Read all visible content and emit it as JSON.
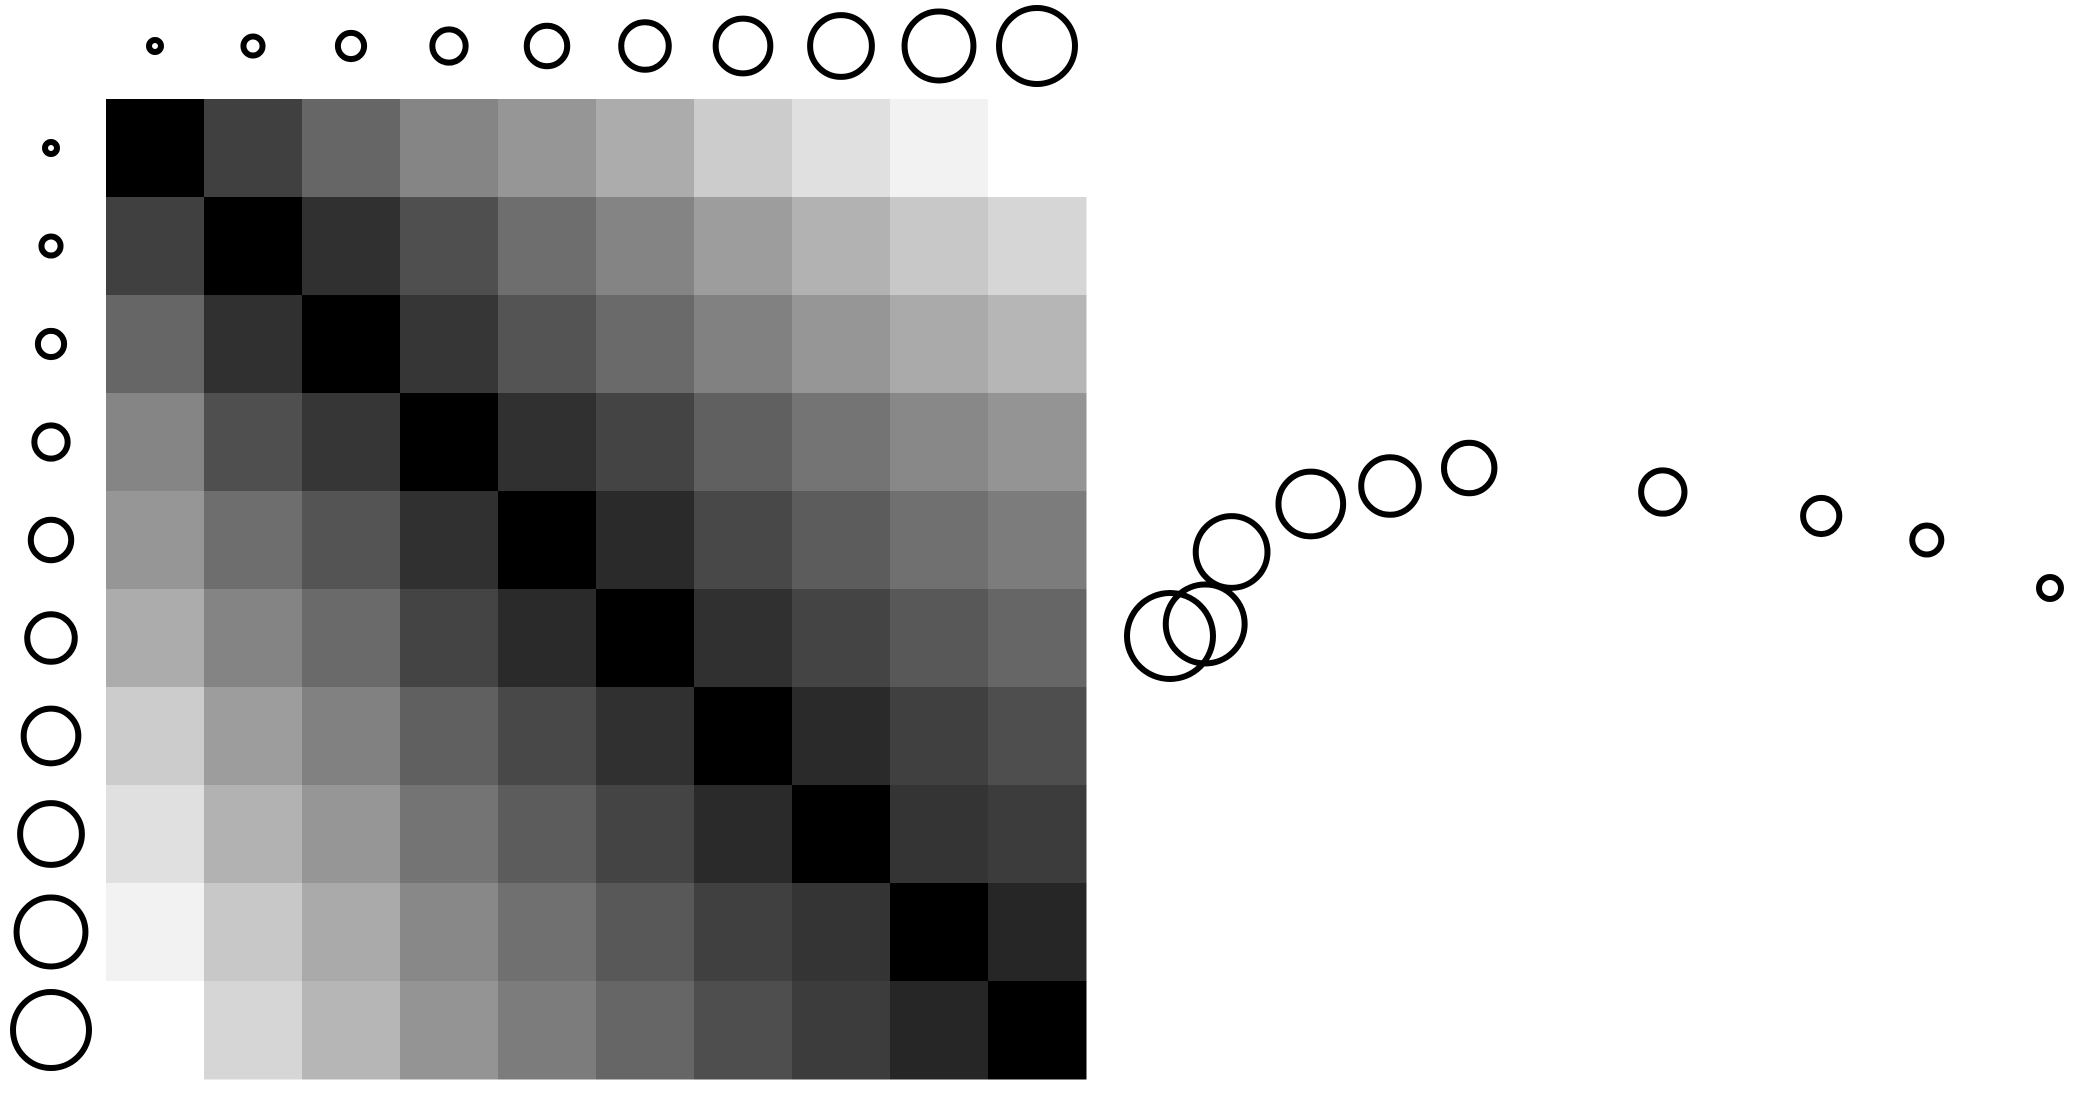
{
  "chart_data": {
    "type": "heatmap",
    "title": "",
    "description_note": "",
    "matrix": [
      [
        0,
        64,
        102,
        133,
        150,
        172,
        204,
        224,
        242,
        255
      ],
      [
        64,
        0,
        48,
        79,
        110,
        132,
        157,
        178,
        200,
        214
      ],
      [
        102,
        48,
        0,
        54,
        84,
        106,
        129,
        150,
        170,
        182
      ],
      [
        133,
        79,
        54,
        0,
        48,
        68,
        96,
        116,
        136,
        148
      ],
      [
        150,
        110,
        84,
        48,
        0,
        42,
        72,
        92,
        112,
        124
      ],
      [
        172,
        132,
        106,
        68,
        42,
        0,
        48,
        68,
        88,
        102
      ],
      [
        204,
        157,
        129,
        96,
        72,
        48,
        0,
        42,
        64,
        78
      ],
      [
        224,
        178,
        150,
        116,
        92,
        68,
        42,
        0,
        52,
        60
      ],
      [
        242,
        200,
        170,
        136,
        112,
        88,
        64,
        52,
        0,
        38
      ],
      [
        255,
        214,
        182,
        148,
        124,
        102,
        78,
        60,
        38,
        0
      ]
    ],
    "circle_sizes": [
      1,
      2,
      3,
      4,
      5,
      6,
      7,
      8,
      9,
      10
    ],
    "embedding": [
      {
        "x": 1.0,
        "y": 0.22
      },
      {
        "x": 0.86,
        "y": 0.3
      },
      {
        "x": 0.74,
        "y": 0.34
      },
      {
        "x": 0.56,
        "y": 0.38
      },
      {
        "x": 0.34,
        "y": 0.42
      },
      {
        "x": 0.25,
        "y": 0.39
      },
      {
        "x": 0.16,
        "y": 0.36
      },
      {
        "x": 0.07,
        "y": 0.28
      },
      {
        "x": 0.04,
        "y": 0.16
      },
      {
        "x": 0.0,
        "y": 0.14
      }
    ],
    "grid": false,
    "legend": "none"
  },
  "colors": {
    "background": "#ffffff",
    "stroke": "#000000"
  }
}
